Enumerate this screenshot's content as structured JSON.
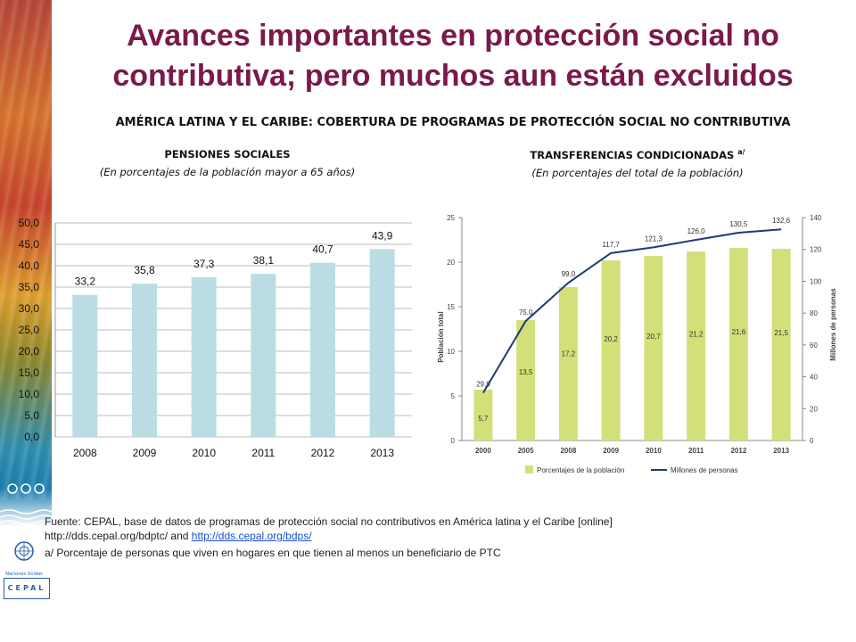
{
  "title_line1": "Avances importantes en protección social no",
  "title_line2": "contributiva; pero muchos aun están excluidos",
  "subtitle": "AMÉRICA LATINA Y EL CARIBE: COBERTURA DE PROGRAMAS DE PROTECCIÓN SOCIAL NO CONTRIBUTIVA",
  "left_panel": {
    "title": "PENSIONES SOCIALES",
    "subtitle": "(En porcentajes de la población mayor a 65 años)"
  },
  "right_panel": {
    "title": "TRANSFERENCIAS CONDICIONADAS",
    "title_sup": "a/",
    "subtitle": "(En porcentajes del total de la población)"
  },
  "footer": {
    "line1": "Fuente: CEPAL, base de datos de programas de protección social no contributivos en América latina y el Caribe [online]",
    "line2_prefix": "http://dds.cepal.org/bdptc/ and ",
    "line2_link": "http://dds.cepal.org/bdps/",
    "note": "a/ Porcentaje de personas que viven en hogares en que tienen al menos un beneficiario de PTC"
  },
  "logos": {
    "un_caption": "Naciones Unidas",
    "cepal": "CEPAL"
  },
  "chart_data": [
    {
      "type": "bar",
      "title": "PENSIONES SOCIALES",
      "categories": [
        "2008",
        "2009",
        "2010",
        "2011",
        "2012",
        "2013"
      ],
      "values": [
        33.2,
        35.8,
        37.3,
        38.1,
        40.7,
        43.9
      ],
      "value_labels": [
        "33,2",
        "35,8",
        "37,3",
        "38,1",
        "40,7",
        "43,9"
      ],
      "ylim": [
        0,
        50
      ],
      "yticks": [
        "0,0",
        "5,0",
        "10,0",
        "15,0",
        "20,0",
        "25,0",
        "30,0",
        "35,0",
        "40,0",
        "45,0",
        "50,0"
      ],
      "grid": true,
      "colors": {
        "bar": "#b9dde3",
        "grid": "#bdbdbd"
      }
    },
    {
      "type": "bar",
      "title": "TRANSFERENCIAS CONDICIONADAS",
      "categories": [
        "2000",
        "2005",
        "2008",
        "2009",
        "2010",
        "2011",
        "2012",
        "2013"
      ],
      "ylabel": "Población total",
      "y2label": "Millones de personas",
      "ylim": [
        0,
        25
      ],
      "y2lim": [
        0,
        140
      ],
      "yticks": [
        "0",
        "5",
        "10",
        "15",
        "20",
        "25"
      ],
      "y2ticks": [
        "0",
        "20",
        "40",
        "60",
        "80",
        "100",
        "120",
        "140"
      ],
      "grid": false,
      "series": [
        {
          "name": "Porcentajes de la población",
          "type": "bar",
          "axis": "left",
          "values": [
            5.7,
            13.5,
            17.2,
            20.2,
            20.7,
            21.2,
            21.6,
            21.5
          ],
          "labels": [
            "5,7",
            "13,5",
            "17,2",
            "20,2",
            "20,7",
            "21,2",
            "21,6",
            "21,5"
          ],
          "color": "#d3e07a"
        },
        {
          "name": "Millones de personas",
          "type": "line",
          "axis": "right",
          "values": [
            29.9,
            75.0,
            99.0,
            117.7,
            121.3,
            126.0,
            130.5,
            132.6
          ],
          "labels": [
            "29,9",
            "75,0",
            "99,0",
            "117,7",
            "121,3",
            "126,0",
            "130,5",
            "132,6"
          ],
          "color": "#1e3a78"
        }
      ],
      "legend": "bottom"
    }
  ]
}
